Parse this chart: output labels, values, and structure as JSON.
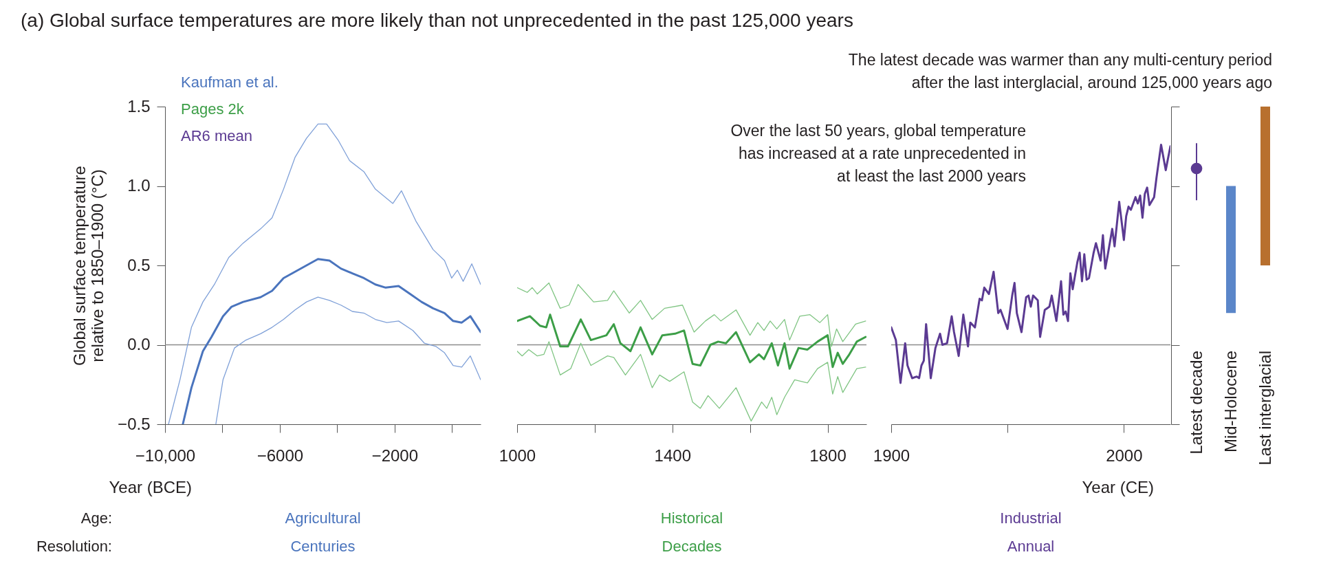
{
  "chart_data": [
    {
      "type": "line",
      "title": "(a) Global surface temperatures are more likely than not unprecedented in the past 125,000 years",
      "xlabel": "Year (BCE)",
      "ylabel": "Global surface temperature relative to 1850–1900 (°C)",
      "xlim": [
        -10000,
        1000
      ],
      "xticks": [
        {
          "value": -10000,
          "label": "−10,000"
        },
        {
          "value": -8000,
          "label": null
        },
        {
          "value": -6000,
          "label": "−6000"
        },
        {
          "value": -4000,
          "label": null
        },
        {
          "value": -2000,
          "label": "−2000"
        },
        {
          "value": 0,
          "label": null
        }
      ],
      "ylim": [
        -0.5,
        1.5
      ],
      "yticks": [
        {
          "value": -0.5,
          "label": "−0.5"
        },
        {
          "value": 0,
          "label": "0.0"
        },
        0.5,
        {
          "value": 1,
          "label": "1.0"
        },
        1.5
      ],
      "legend": "top left",
      "ref_lines": [
        {
          "axis": "y",
          "value": 0,
          "color": "#8c8c8c"
        }
      ],
      "annotations": [
        "Age:",
        "Resolution:",
        "Agricultural",
        "Centuries"
      ],
      "series": [
        {
          "name": "Kaufman et al.",
          "color": "#4a74bd",
          "x": [
            -9380,
            -9080,
            -8680,
            -8380,
            -7980,
            -7680,
            -7280,
            -6670,
            -6270,
            -5870,
            -5470,
            -5070,
            -4670,
            -4270,
            -3870,
            -3470,
            -3070,
            -2670,
            -2310,
            -1860,
            -1460,
            -1060,
            -660,
            -260,
            40,
            340,
            640,
            1000
          ],
          "values": [
            -0.5,
            -0.27,
            -0.04,
            0.05,
            0.18,
            0.24,
            0.27,
            0.3,
            0.34,
            0.42,
            0.46,
            0.5,
            0.54,
            0.53,
            0.48,
            0.45,
            0.42,
            0.38,
            0.36,
            0.37,
            0.32,
            0.27,
            0.23,
            0.2,
            0.15,
            0.14,
            0.18,
            0.08
          ]
        },
        {
          "color": "#7fa0d8",
          "x": [
            -9880,
            -9480,
            -9080,
            -8680,
            -8280,
            -7780,
            -7280,
            -6670,
            -6270,
            -5870,
            -5470,
            -5070,
            -4670,
            -4370,
            -3970,
            -3570,
            -3070,
            -2670,
            -2060,
            -1760,
            -1260,
            -660,
            -260,
            -10,
            190,
            390,
            690,
            1000
          ],
          "values": [
            -0.5,
            -0.22,
            0.11,
            0.27,
            0.38,
            0.55,
            0.64,
            0.73,
            0.8,
            0.98,
            1.18,
            1.3,
            1.39,
            1.39,
            1.29,
            1.16,
            1.09,
            0.98,
            0.89,
            0.97,
            0.78,
            0.6,
            0.53,
            0.42,
            0.47,
            0.4,
            0.51,
            0.38
          ]
        },
        {
          "color": "#7fa0d8",
          "x": [
            -8230,
            -7980,
            -7580,
            -7180,
            -6670,
            -6270,
            -5870,
            -5470,
            -5070,
            -4670,
            -4270,
            -3870,
            -3470,
            -3070,
            -2670,
            -2270,
            -1860,
            -1360,
            -960,
            -560,
            -260,
            40,
            340,
            640,
            1000
          ],
          "values": [
            -0.5,
            -0.22,
            -0.02,
            0.03,
            0.07,
            0.11,
            0.16,
            0.22,
            0.27,
            0.3,
            0.28,
            0.25,
            0.21,
            0.2,
            0.16,
            0.14,
            0.15,
            0.09,
            0.01,
            -0.01,
            -0.05,
            -0.13,
            -0.14,
            -0.07,
            -0.22
          ]
        }
      ]
    },
    {
      "type": "line",
      "xlim": [
        1000,
        1900
      ],
      "xticks": [
        1000,
        {
          "value": 1200,
          "label": null
        },
        1400,
        {
          "value": 1600,
          "label": null
        },
        1800
      ],
      "ylim": [
        -0.5,
        1.5
      ],
      "tick_labels": "x",
      "ref_lines": [
        {
          "axis": "y",
          "value": 0,
          "color": "#8c8c8c"
        }
      ],
      "annotations": [
        "Historical",
        "Decades"
      ],
      "series": [
        {
          "name": "Pages 2k",
          "color": "#3c9e47",
          "x": [
            1000,
            1033,
            1059,
            1075,
            1085,
            1111,
            1131,
            1164,
            1190,
            1230,
            1249,
            1266,
            1292,
            1318,
            1348,
            1374,
            1407,
            1430,
            1452,
            1472,
            1498,
            1518,
            1538,
            1564,
            1600,
            1623,
            1636,
            1656,
            1672,
            1689,
            1702,
            1725,
            1748,
            1774,
            1800,
            1813,
            1826,
            1839,
            1856,
            1875,
            1898
          ],
          "values": [
            0.15,
            0.18,
            0.12,
            0.11,
            0.19,
            -0.01,
            -0.01,
            0.16,
            0.03,
            0.06,
            0.13,
            0.01,
            -0.04,
            0.11,
            -0.06,
            0.06,
            0.07,
            0.09,
            -0.12,
            -0.13,
            0.0,
            0.02,
            0.01,
            0.08,
            -0.11,
            -0.06,
            -0.09,
            0.01,
            -0.13,
            0.01,
            -0.15,
            -0.02,
            -0.03,
            0.02,
            0.06,
            -0.14,
            -0.05,
            -0.12,
            -0.06,
            0.02,
            0.05
          ]
        },
        {
          "color": "#80c583",
          "x": [
            1000,
            1026,
            1039,
            1052,
            1082,
            1111,
            1134,
            1157,
            1197,
            1233,
            1249,
            1289,
            1318,
            1348,
            1380,
            1426,
            1456,
            1485,
            1508,
            1525,
            1564,
            1600,
            1620,
            1636,
            1652,
            1669,
            1689,
            1702,
            1728,
            1754,
            1780,
            1800,
            1810,
            1823,
            1839,
            1872,
            1898
          ],
          "values": [
            0.36,
            0.33,
            0.36,
            0.32,
            0.39,
            0.23,
            0.25,
            0.38,
            0.27,
            0.28,
            0.34,
            0.2,
            0.28,
            0.16,
            0.23,
            0.25,
            0.08,
            0.15,
            0.19,
            0.15,
            0.22,
            0.06,
            0.14,
            0.09,
            0.15,
            0.1,
            0.16,
            0.03,
            0.18,
            0.19,
            0.14,
            0.19,
            -0.01,
            0.1,
            0.02,
            0.13,
            0.15
          ]
        },
        {
          "color": "#80c583",
          "x": [
            1000,
            1013,
            1030,
            1052,
            1069,
            1082,
            1111,
            1138,
            1164,
            1190,
            1233,
            1249,
            1279,
            1318,
            1348,
            1367,
            1393,
            1430,
            1452,
            1472,
            1492,
            1521,
            1564,
            1603,
            1630,
            1643,
            1656,
            1669,
            1689,
            1715,
            1748,
            1774,
            1800,
            1813,
            1826,
            1839,
            1875,
            1898
          ],
          "values": [
            -0.04,
            -0.07,
            -0.03,
            -0.07,
            -0.06,
            0.02,
            -0.19,
            -0.15,
            0.01,
            -0.13,
            -0.07,
            -0.08,
            -0.19,
            -0.06,
            -0.27,
            -0.19,
            -0.23,
            -0.17,
            -0.36,
            -0.4,
            -0.32,
            -0.4,
            -0.27,
            -0.48,
            -0.36,
            -0.4,
            -0.33,
            -0.44,
            -0.33,
            -0.22,
            -0.24,
            -0.15,
            -0.11,
            -0.31,
            -0.2,
            -0.3,
            -0.15,
            -0.14
          ]
        }
      ]
    },
    {
      "type": "line",
      "xlabel": "Year (CE)",
      "xlim": [
        1900,
        2020
      ],
      "xticks": [
        1900,
        {
          "value": 1950,
          "label": null
        },
        2000
      ],
      "ylim": [
        -0.5,
        1.5
      ],
      "tick_labels": "x",
      "ref_lines": [
        {
          "axis": "y",
          "value": 0,
          "color": "#8c8c8c"
        }
      ],
      "annotations": [
        "Over the last 50 years, global temperature has increased at a rate unprecedented in at least the last 2000 years",
        "Industrial",
        "Annual"
      ],
      "series": [
        {
          "name": "AR6 mean",
          "color": "#5b3a92",
          "x": [
            1900,
            1902,
            1904,
            1906,
            1907,
            1909,
            1911,
            1912,
            1913,
            1914,
            1915,
            1917,
            1919,
            1921,
            1922,
            1924,
            1926,
            1927,
            1929,
            1931,
            1933,
            1934,
            1936,
            1938,
            1939,
            1940,
            1942,
            1944,
            1946,
            1947,
            1950,
            1952,
            1953,
            1954,
            1956,
            1958,
            1959,
            1960,
            1961,
            1963,
            1964,
            1966,
            1968,
            1969,
            1971,
            1973,
            1974,
            1975,
            1976,
            1977,
            1978,
            1980,
            1981,
            1982,
            1983,
            1984,
            1985,
            1987,
            1988,
            1990,
            1991,
            1992,
            1993,
            1995,
            1996,
            1998,
            2000,
            2001,
            2002,
            2003,
            2005,
            2006,
            2007,
            2008,
            2009,
            2010,
            2011,
            2013,
            2014,
            2016,
            2018,
            2020
          ],
          "values": [
            0.11,
            0.03,
            -0.24,
            0.01,
            -0.13,
            -0.21,
            -0.2,
            -0.21,
            -0.13,
            -0.1,
            0.13,
            -0.21,
            -0.02,
            0.07,
            0.0,
            0.01,
            0.18,
            0.08,
            -0.07,
            0.19,
            -0.01,
            0.14,
            0.11,
            0.29,
            0.28,
            0.36,
            0.32,
            0.46,
            0.2,
            0.22,
            0.1,
            0.31,
            0.39,
            0.2,
            0.08,
            0.3,
            0.31,
            0.24,
            0.31,
            0.28,
            0.05,
            0.22,
            0.24,
            0.31,
            0.15,
            0.4,
            0.19,
            0.21,
            0.15,
            0.45,
            0.35,
            0.52,
            0.58,
            0.4,
            0.57,
            0.41,
            0.42,
            0.58,
            0.64,
            0.53,
            0.69,
            0.48,
            0.56,
            0.73,
            0.62,
            0.9,
            0.66,
            0.81,
            0.87,
            0.85,
            0.93,
            0.89,
            0.94,
            0.8,
            0.95,
            0.99,
            0.88,
            0.93,
            1.05,
            1.26,
            1.1,
            1.25
          ]
        }
      ]
    },
    {
      "type": "bar",
      "categories": [
        "Latest decade",
        "Mid-Holocene",
        "Last interglacial"
      ],
      "ylim": [
        -0.5,
        1.5
      ],
      "yticks": [
        {
          "value": -0.5,
          "label": null
        },
        {
          "value": 0,
          "label": null
        },
        {
          "value": 0.5,
          "label": null
        },
        {
          "value": 1,
          "label": null
        },
        {
          "value": 1.5,
          "label": null
        }
      ],
      "tick_labels": "x",
      "annotations": [
        "The latest decade was warmer than any multi-century period after the last interglacial, around 125,000 years ago"
      ],
      "series": [
        {
          "type": "scatter",
          "color": "#5b3a92",
          "values": [
            1.11,
            null,
            null
          ],
          "errors": [
            [
              0.91,
              1.27
            ],
            null,
            null
          ]
        },
        {
          "base": [
            null,
            0.2,
            0.5
          ],
          "values": [
            null,
            0.8,
            1.0
          ],
          "colors": [
            null,
            "#5b86c9",
            "#b8702e"
          ]
        }
      ]
    }
  ]
}
